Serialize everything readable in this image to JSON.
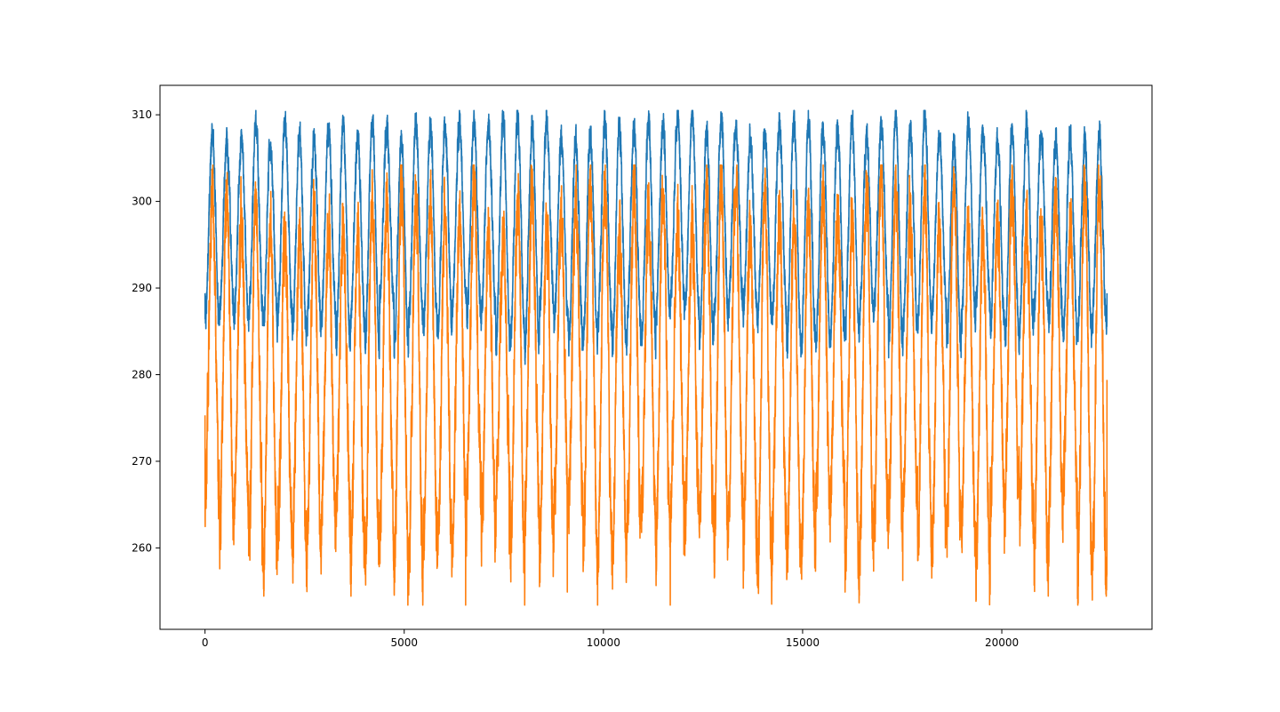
{
  "chart_data": {
    "type": "line",
    "title": "",
    "xlabel": "",
    "ylabel": "",
    "xlim": [
      -1130,
      23770
    ],
    "ylim": [
      250.6,
      313.4
    ],
    "x_ticks": [
      0,
      5000,
      10000,
      15000,
      20000
    ],
    "x_tick_labels": [
      "0",
      "5000",
      "10000",
      "15000",
      "20000"
    ],
    "y_ticks": [
      260,
      270,
      280,
      290,
      300,
      310
    ],
    "y_tick_labels": [
      "260",
      "270",
      "280",
      "290",
      "300",
      "310"
    ],
    "grid": false,
    "legend": "none",
    "series": [
      {
        "color": "#1f77b4",
        "x_start": 0,
        "x_end": 22640,
        "cycle_length": 365,
        "start_value": 289.4,
        "end_value": 289.4,
        "max_value": 310.5,
        "min_value": 278.3,
        "summer_peak_range": [
          305.8,
          310.5
        ],
        "winter_trough_range": [
          282.8,
          288.5
        ]
      },
      {
        "color": "#ff7f0e",
        "x_start": 0,
        "x_end": 22640,
        "cycle_length": 365,
        "start_value": 275.3,
        "end_value": 279.4,
        "max_value": 304.2,
        "min_value": 253.4,
        "summer_peak_range": [
          293.5,
          303.8
        ],
        "winter_trough_range": [
          256.7,
          267.5
        ]
      }
    ]
  }
}
